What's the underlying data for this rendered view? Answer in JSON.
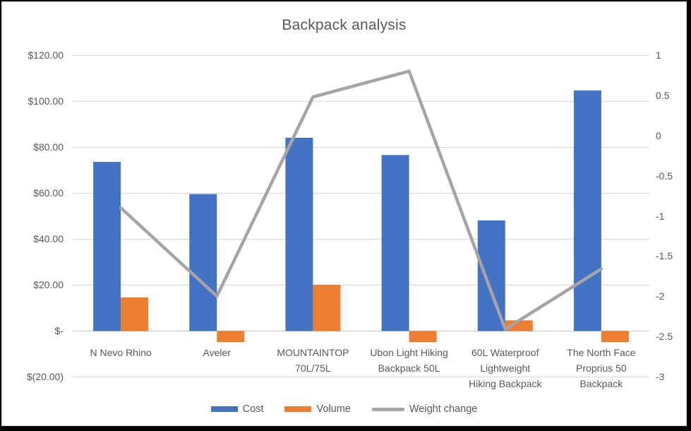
{
  "chart_data": {
    "type": "combo (clustered bar + line, dual axis)",
    "title": "Backpack analysis",
    "categories": [
      "N Nevo Rhino",
      "Aveler",
      "MOUNTAINTOP 70L/75L",
      "Ubon Light Hiking Backpack 50L",
      "60L Waterproof Lightweight Hiking Backpack",
      "The North Face Proprius 50 Backpack"
    ],
    "category_label_lines": [
      [
        "N Nevo Rhino"
      ],
      [
        "Aveler"
      ],
      [
        "MOUNTAINTOP",
        "70L/75L"
      ],
      [
        "Ubon Light Hiking",
        "Backpack 50L"
      ],
      [
        "60L Waterproof",
        "Lightweight",
        "Hiking Backpack"
      ],
      [
        "The North Face",
        "Proprius 50",
        "Backpack"
      ]
    ],
    "series": [
      {
        "name": "Cost",
        "type": "bar",
        "axis": "left",
        "color": "#4472C4",
        "values": [
          73.5,
          59.5,
          84,
          76.5,
          48,
          104.6
        ]
      },
      {
        "name": "Volume",
        "type": "bar",
        "axis": "left",
        "color": "#ED7D31",
        "values": [
          14.5,
          -5,
          20,
          -5,
          4.5,
          -5
        ]
      },
      {
        "name": "Weight change",
        "type": "line",
        "axis": "right",
        "color": "#A5A5A5",
        "values": [
          -0.9,
          -2,
          0.48,
          0.8,
          -2.41,
          -1.66
        ]
      }
    ],
    "left_axis": {
      "tick_labels": [
        "$120.00",
        "$100.00",
        "$80.00",
        "$60.00",
        "$40.00",
        "$20.00",
        "$-",
        "$(20.00)"
      ],
      "tick_values": [
        120,
        100,
        80,
        60,
        40,
        20,
        0,
        -20
      ],
      "min": -20,
      "max": 120
    },
    "right_axis": {
      "tick_labels": [
        "1",
        "0.5",
        "0",
        "-0.5",
        "-1",
        "-1.5",
        "-2",
        "-2.5",
        "-3"
      ],
      "tick_values": [
        1,
        0.5,
        0,
        -0.5,
        -1,
        -1.5,
        -2,
        -2.5,
        -3
      ],
      "min": -3,
      "max": 1
    },
    "grid": true,
    "legend_position": "bottom",
    "colors": {
      "grid": "#D9D9D9",
      "axis_line": "#C6C6C6",
      "text": "#595959",
      "background": "#FFFFFF",
      "frame": "#000000"
    }
  }
}
